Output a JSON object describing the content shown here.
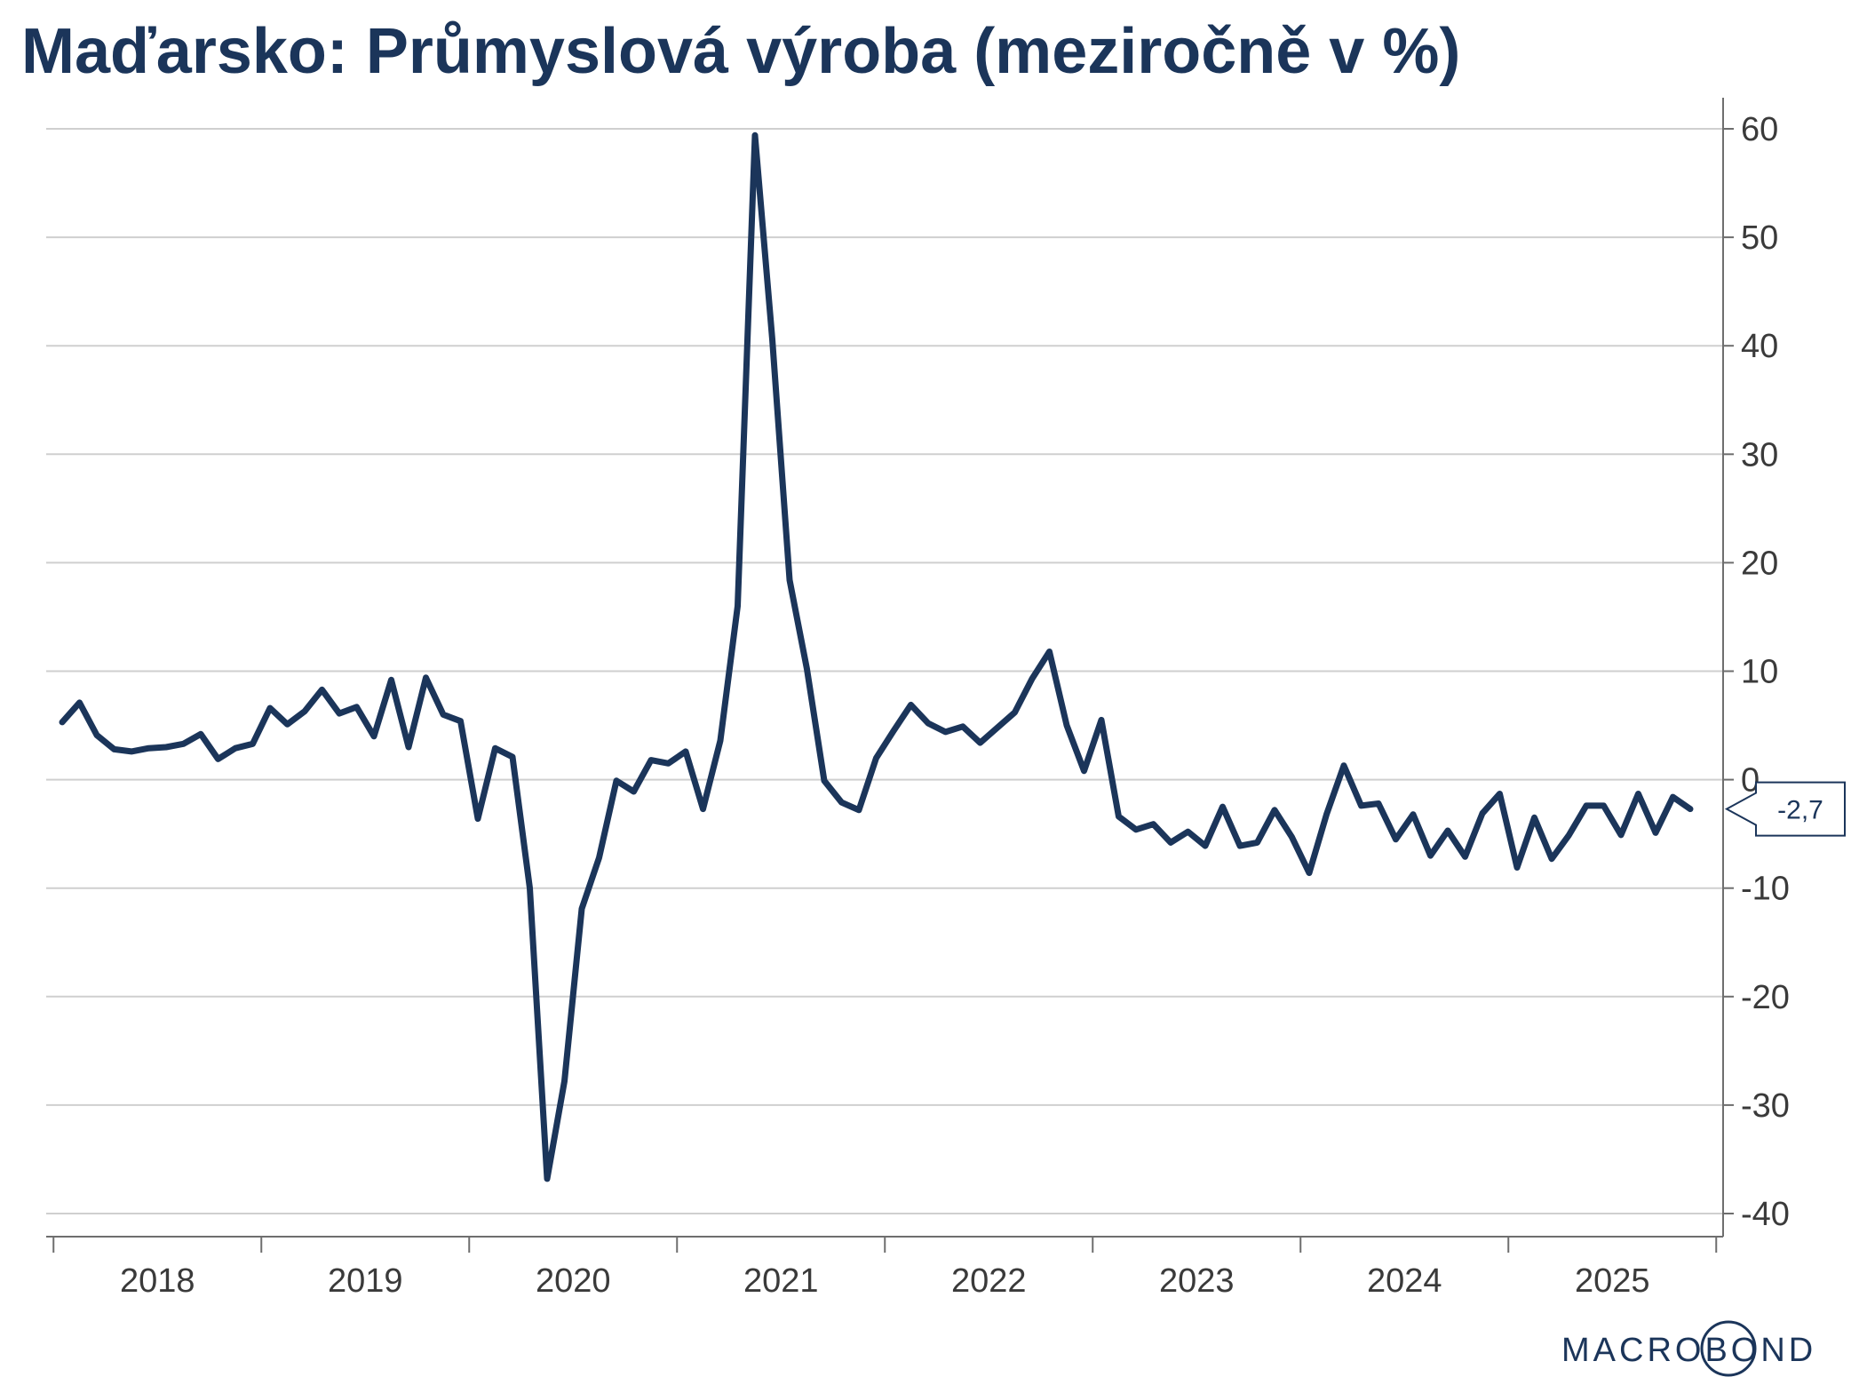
{
  "chart_data": {
    "type": "line",
    "title": "Maďarsko: Průmyslová výroba (meziročně v %)",
    "xlabel": "",
    "ylabel": "",
    "ylim": [
      -42,
      62
    ],
    "yticks": [
      60,
      50,
      40,
      30,
      20,
      10,
      0,
      -10,
      -20,
      -30,
      -40
    ],
    "ytick_labels": [
      "60",
      "50",
      "40",
      "30",
      "20",
      "10",
      "0",
      "-10",
      "-20",
      "-30",
      "-40"
    ],
    "x_year_labels": [
      "2018",
      "2019",
      "2020",
      "2021",
      "2022",
      "2023",
      "2024",
      "2025"
    ],
    "grid": true,
    "legend": "none",
    "last_value_label": "-2,7",
    "x_start": "2018-01",
    "series": [
      {
        "color": "#1b355a",
        "values": [
          5.3,
          7.1,
          4.1,
          2.8,
          2.6,
          2.9,
          3.0,
          3.3,
          4.2,
          1.9,
          2.9,
          3.3,
          6.6,
          5.1,
          6.3,
          8.3,
          6.1,
          6.7,
          4.0,
          9.2,
          3.0,
          9.4,
          6.0,
          5.4,
          -3.6,
          2.9,
          2.1,
          -10.0,
          -36.8,
          -27.8,
          -11.9,
          -7.2,
          -0.1,
          -1.1,
          1.8,
          1.5,
          2.6,
          -2.7,
          3.6,
          16.0,
          59.4,
          40.6,
          18.4,
          10.2,
          -0.1,
          -2.1,
          -2.8,
          2.0,
          4.5,
          6.9,
          5.2,
          4.4,
          4.9,
          3.4,
          4.8,
          6.2,
          9.3,
          11.8,
          5.0,
          0.8,
          5.5,
          -3.4,
          -4.6,
          -4.1,
          -5.8,
          -4.8,
          -6.1,
          -2.5,
          -6.1,
          -5.8,
          -2.8,
          -5.3,
          -8.6,
          -3.2,
          1.3,
          -2.4,
          -2.2,
          -5.5,
          -3.2,
          -7.0,
          -4.7,
          -7.1,
          -3.1,
          -1.3,
          -8.1,
          -3.5,
          -7.3,
          -5.1,
          -2.4,
          -2.4,
          -5.1,
          -1.3,
          -4.9,
          -1.6,
          -2.7
        ]
      }
    ]
  },
  "branding": {
    "logo_text": "MACROBOND"
  }
}
